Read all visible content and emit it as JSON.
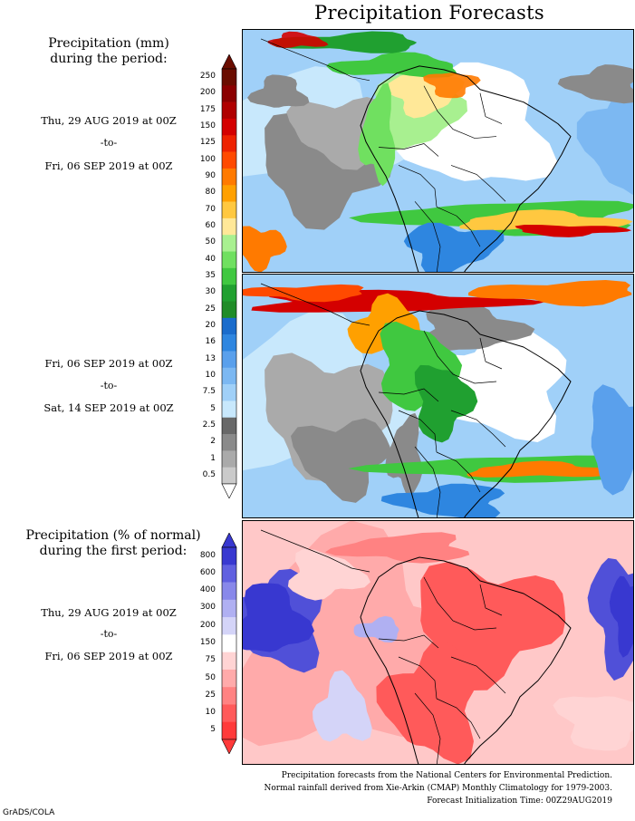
{
  "title": "Precipitation Forecasts",
  "section1": {
    "heading_line1": "Precipitation (mm)",
    "heading_line2": "during the period:",
    "period1": {
      "start": "Thu, 29 AUG 2019 at 00Z",
      "sep": "-to-",
      "end": "Fri, 06 SEP 2019 at 00Z"
    },
    "period2": {
      "start": "Fri, 06 SEP 2019 at 00Z",
      "sep": "-to-",
      "end": "Sat, 14 SEP 2019 at 00Z"
    }
  },
  "section2": {
    "heading_line1": "Precipitation (% of normal)",
    "heading_line2": "during the first period:",
    "period": {
      "start": "Thu, 29 AUG 2019 at 00Z",
      "sep": "-to-",
      "end": "Fri, 06 SEP 2019 at 00Z"
    }
  },
  "mm_scale": {
    "ticks": [
      "250",
      "200",
      "175",
      "150",
      "125",
      "100",
      "90",
      "80",
      "70",
      "60",
      "50",
      "40",
      "35",
      "30",
      "25",
      "20",
      "16",
      "13",
      "10",
      "7.5",
      "5",
      "2.5",
      "2",
      "1",
      "0.5"
    ],
    "colors": [
      "#6a0d00",
      "#8b0000",
      "#b00000",
      "#d40000",
      "#ee2200",
      "#ff4a00",
      "#ff7a00",
      "#ffa000",
      "#ffc840",
      "#ffe898",
      "#a8f090",
      "#70e060",
      "#40c840",
      "#20a030",
      "#208c28",
      "#1a6ccc",
      "#2e86e0",
      "#5aa0ec",
      "#7cb8f2",
      "#a0d0f8",
      "#c8e8fc",
      "#686868",
      "#8a8a8a",
      "#aaaaaa",
      "#cacaca"
    ],
    "arrow_top": "#6a0d00",
    "arrow_bottom": "#ffffff"
  },
  "pct_scale": {
    "ticks": [
      "800",
      "600",
      "400",
      "300",
      "200",
      "150",
      "75",
      "50",
      "25",
      "10",
      "5"
    ],
    "colors": [
      "#3838d0",
      "#6060e0",
      "#8888ea",
      "#b0b0f2",
      "#d4d4f8",
      "#ffffff",
      "#ffd4d4",
      "#ffaaaa",
      "#ff8282",
      "#ff5a5a",
      "#ff3a3a"
    ],
    "arrow_top": "#3838d0",
    "arrow_bottom": "#ff3a3a"
  },
  "footer": {
    "line1": "Precipitation forecasts from the National Centers for Environmental Prediction.",
    "line2": "Normal rainfall derived from Xie-Arkin (CMAP) Monthly Climatology for 1979-2003.",
    "line3": "Forecast Initialization Time: 00Z29AUG2019"
  },
  "credit": "GrADS/COLA",
  "colors": {
    "land_dry": "#ffffff",
    "ocean_light": "#a0d0f8",
    "gray_dry": "#8a8a8a",
    "wet_green": "#40c840",
    "heavy_red": "#d40000",
    "deficit_red": "#ff5a5a",
    "surplus_blue": "#5050d8"
  }
}
